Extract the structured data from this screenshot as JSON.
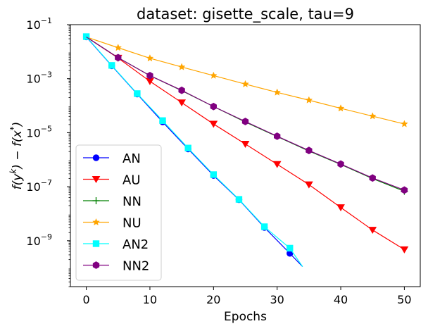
{
  "chart_data": {
    "type": "line",
    "title": "dataset: gisette_scale, tau=9",
    "xlabel": "Epochs",
    "ylabel": "f(y^k) − f(x*)",
    "ylabel_parts": {
      "base": "f(y",
      "sup": "k",
      "mid": ") − f(x",
      "sup2": "*",
      "end": ")"
    },
    "x_scale": "linear",
    "y_scale": "log",
    "xlim": [
      -2.5,
      52.5
    ],
    "ylim": [
      2e-11,
      0.1
    ],
    "x_ticks": [
      {
        "value": 0,
        "label": "0"
      },
      {
        "value": 10,
        "label": "10"
      },
      {
        "value": 20,
        "label": "20"
      },
      {
        "value": 30,
        "label": "30"
      },
      {
        "value": 40,
        "label": "40"
      },
      {
        "value": 50,
        "label": "50"
      }
    ],
    "y_ticks": [
      {
        "value": 1e-09,
        "base": "10",
        "exp": "−9"
      },
      {
        "value": 1e-07,
        "base": "10",
        "exp": "−7"
      },
      {
        "value": 1e-05,
        "base": "10",
        "exp": "−5"
      },
      {
        "value": 0.001,
        "base": "10",
        "exp": "−3"
      },
      {
        "value": 0.1,
        "base": "10",
        "exp": "−1"
      }
    ],
    "legend_position": "lower-left",
    "series": [
      {
        "name": "AN",
        "color": "#0000ff",
        "marker": "circle",
        "x": [
          0,
          4,
          8,
          12,
          16,
          20,
          24,
          28,
          32,
          34
        ],
        "y": [
          0.035,
          0.003,
          0.00027,
          2.5e-05,
          2.5e-06,
          2.6e-07,
          3.3e-08,
          3.1e-09,
          3.4e-10,
          1.1e-10
        ],
        "marker_x": [
          0,
          4,
          8,
          12,
          16,
          20,
          24,
          28,
          32
        ]
      },
      {
        "name": "AU",
        "color": "#ff0000",
        "marker": "triangle-down",
        "x": [
          0,
          5,
          10,
          15,
          20,
          25,
          30,
          35,
          40,
          45,
          50
        ],
        "y": [
          0.035,
          0.0058,
          0.0008,
          0.00013,
          2.1e-05,
          3.8e-06,
          6.8e-07,
          1.2e-07,
          1.7e-08,
          2.5e-09,
          4.7e-10
        ],
        "marker_x": [
          5,
          10,
          15,
          20,
          25,
          30,
          35,
          40,
          45,
          50
        ]
      },
      {
        "name": "NN",
        "color": "#008000",
        "marker": "plus",
        "x": [
          0,
          5,
          10,
          15,
          20,
          25,
          30,
          35,
          40,
          45,
          50
        ],
        "y": [
          0.035,
          0.006,
          0.0013,
          0.00036,
          9.3e-05,
          2.5e-05,
          7.2e-06,
          2.1e-06,
          6.7e-07,
          2e-07,
          6.8e-08
        ],
        "marker_x": [
          50
        ]
      },
      {
        "name": "NU",
        "color": "#ffa500",
        "marker": "star",
        "x": [
          0,
          5,
          10,
          15,
          20,
          25,
          30,
          35,
          40,
          45,
          50
        ],
        "y": [
          0.035,
          0.014,
          0.0057,
          0.0027,
          0.0013,
          0.00063,
          0.00031,
          0.00016,
          8e-05,
          4.1e-05,
          2.1e-05
        ],
        "marker_x": [
          5,
          10,
          15,
          20,
          25,
          30,
          35,
          40,
          45,
          50
        ]
      },
      {
        "name": "AN2",
        "color": "#00ffff",
        "marker": "square",
        "x": [
          0,
          4,
          8,
          12,
          16,
          20,
          24,
          28,
          32,
          34
        ],
        "y": [
          0.036,
          0.0031,
          0.00028,
          2.8e-05,
          2.7e-06,
          2.8e-07,
          3.4e-08,
          3.3e-09,
          5.3e-10,
          1.1e-10
        ],
        "marker_x": [
          0,
          4,
          8,
          12,
          16,
          20,
          24,
          28,
          32
        ]
      },
      {
        "name": "NN2",
        "color": "#800080",
        "marker": "hexagon",
        "x": [
          0,
          5,
          10,
          15,
          20,
          25,
          30,
          35,
          40,
          45,
          50
        ],
        "y": [
          0.035,
          0.006,
          0.0013,
          0.00037,
          9.3e-05,
          2.6e-05,
          7.4e-06,
          2.2e-06,
          6.9e-07,
          2.1e-07,
          7.5e-08
        ],
        "marker_x": [
          5,
          10,
          15,
          20,
          25,
          30,
          35,
          40,
          45,
          50
        ]
      }
    ]
  }
}
